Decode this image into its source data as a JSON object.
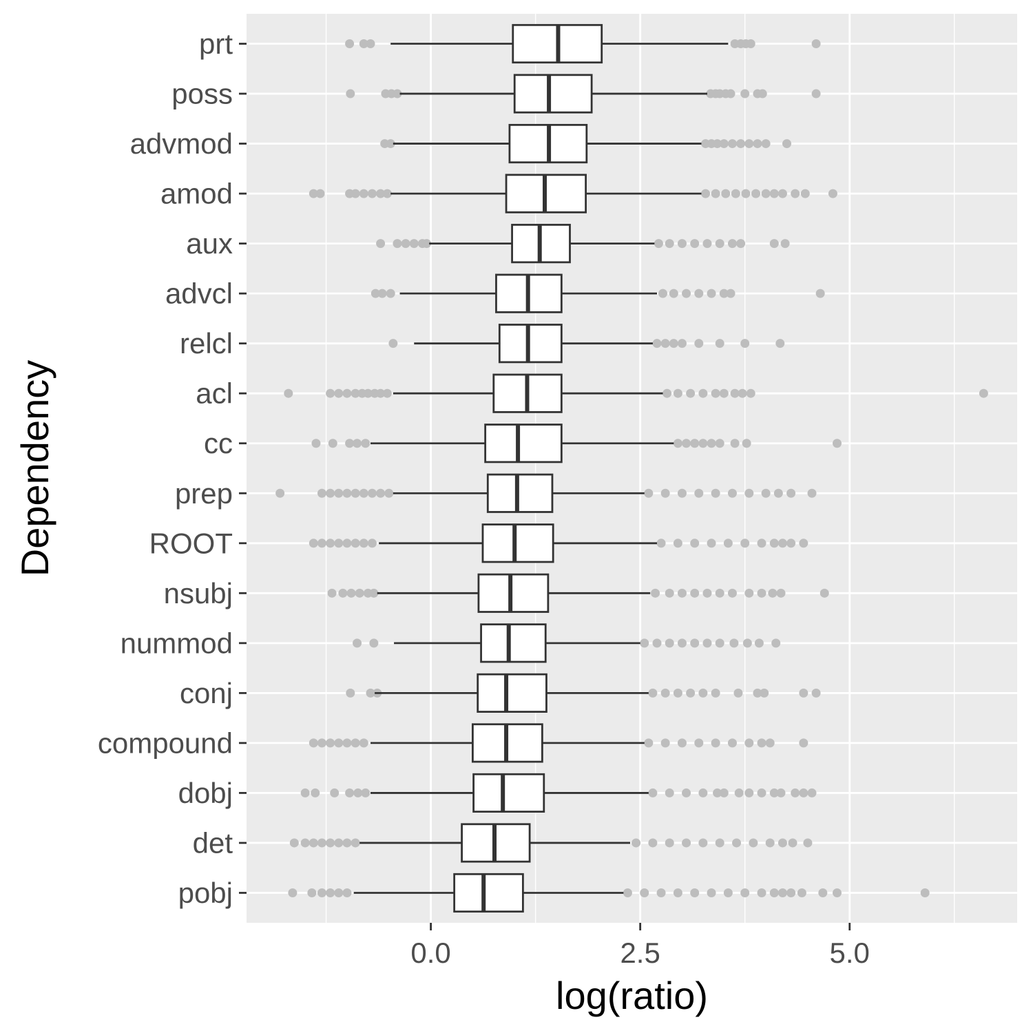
{
  "chart_data": {
    "type": "boxplot",
    "orientation": "horizontal",
    "xlabel": "log(ratio)",
    "ylabel": "Dependency",
    "xlim": [
      -2.2,
      7.0
    ],
    "xticks": [
      0.0,
      2.5,
      5.0
    ],
    "xtick_labels": [
      "0.0",
      "2.5",
      "5.0"
    ],
    "grid": true,
    "legend": "none",
    "colors": {
      "panel": "#ebebeb",
      "grid": "#ffffff",
      "box_fill": "#ffffff",
      "box_line": "#333333",
      "outlier": "#bdbdbd",
      "tick_text": "#4d4d4d"
    },
    "categories": [
      "prt",
      "poss",
      "advmod",
      "amod",
      "aux",
      "advcl",
      "relcl",
      "acl",
      "cc",
      "prep",
      "ROOT",
      "nsubj",
      "nummod",
      "conj",
      "compound",
      "dobj",
      "det",
      "pobj"
    ],
    "boxes": [
      {
        "label": "prt",
        "q1": 0.98,
        "median": 1.52,
        "q3": 2.04,
        "whisker_low": -0.48,
        "whisker_high": 3.55,
        "outliers": [
          -0.97,
          -0.8,
          -0.72,
          3.63,
          3.7,
          3.76,
          3.82,
          4.6
        ]
      },
      {
        "label": "poss",
        "q1": 1.0,
        "median": 1.41,
        "q3": 1.92,
        "whisker_low": -0.37,
        "whisker_high": 3.3,
        "outliers": [
          -0.96,
          -0.54,
          -0.47,
          -0.4,
          3.34,
          3.4,
          3.45,
          3.52,
          3.58,
          3.75,
          3.9,
          3.96,
          4.6
        ]
      },
      {
        "label": "advmod",
        "q1": 0.94,
        "median": 1.41,
        "q3": 1.86,
        "whisker_low": -0.45,
        "whisker_high": 3.23,
        "outliers": [
          -0.55,
          -0.48,
          3.28,
          3.35,
          3.42,
          3.5,
          3.6,
          3.7,
          3.8,
          3.9,
          4.0,
          4.25
        ]
      },
      {
        "label": "amod",
        "q1": 0.9,
        "median": 1.36,
        "q3": 1.85,
        "whisker_low": -0.48,
        "whisker_high": 3.23,
        "outliers": [
          -1.4,
          -1.32,
          -0.97,
          -0.9,
          -0.8,
          -0.7,
          -0.6,
          -0.52,
          3.28,
          3.4,
          3.52,
          3.64,
          3.76,
          3.88,
          4.0,
          4.1,
          4.2,
          4.35,
          4.47,
          4.8
        ]
      },
      {
        "label": "aux",
        "q1": 0.97,
        "median": 1.3,
        "q3": 1.66,
        "whisker_low": -0.02,
        "whisker_high": 2.67,
        "outliers": [
          -0.6,
          -0.4,
          -0.3,
          -0.2,
          -0.1,
          -0.05,
          2.72,
          2.85,
          3.0,
          3.15,
          3.3,
          3.45,
          3.6,
          3.7,
          4.1,
          4.23
        ]
      },
      {
        "label": "advcl",
        "q1": 0.78,
        "median": 1.16,
        "q3": 1.56,
        "whisker_low": -0.37,
        "whisker_high": 2.7,
        "outliers": [
          -0.66,
          -0.58,
          -0.48,
          2.77,
          2.9,
          3.05,
          3.2,
          3.35,
          3.5,
          3.58,
          4.65
        ]
      },
      {
        "label": "relcl",
        "q1": 0.82,
        "median": 1.16,
        "q3": 1.56,
        "whisker_low": -0.2,
        "whisker_high": 2.65,
        "outliers": [
          -0.45,
          2.7,
          2.8,
          2.9,
          3.0,
          3.2,
          3.45,
          3.75,
          4.17
        ]
      },
      {
        "label": "acl",
        "q1": 0.75,
        "median": 1.15,
        "q3": 1.56,
        "whisker_low": -0.45,
        "whisker_high": 2.77,
        "outliers": [
          -1.7,
          -1.2,
          -1.1,
          -1.0,
          -0.9,
          -0.82,
          -0.75,
          -0.67,
          -0.6,
          -0.52,
          2.82,
          2.95,
          3.1,
          3.25,
          3.4,
          3.5,
          3.63,
          3.72,
          3.82,
          6.6
        ]
      },
      {
        "label": "cc",
        "q1": 0.65,
        "median": 1.04,
        "q3": 1.56,
        "whisker_low": -0.72,
        "whisker_high": 2.9,
        "outliers": [
          -1.37,
          -1.17,
          -0.97,
          -0.88,
          -0.78,
          2.95,
          3.05,
          3.15,
          3.25,
          3.35,
          3.45,
          3.63,
          3.77,
          4.85
        ]
      },
      {
        "label": "prep",
        "q1": 0.68,
        "median": 1.03,
        "q3": 1.45,
        "whisker_low": -0.45,
        "whisker_high": 2.55,
        "outliers": [
          -1.8,
          -1.3,
          -1.2,
          -1.1,
          -1.0,
          -0.9,
          -0.8,
          -0.7,
          -0.6,
          -0.5,
          2.6,
          2.8,
          3.0,
          3.2,
          3.4,
          3.6,
          3.8,
          4.0,
          4.15,
          4.3,
          4.55
        ]
      },
      {
        "label": "ROOT",
        "q1": 0.62,
        "median": 1.0,
        "q3": 1.46,
        "whisker_low": -0.62,
        "whisker_high": 2.7,
        "outliers": [
          -1.4,
          -1.3,
          -1.2,
          -1.1,
          -1.0,
          -0.9,
          -0.8,
          -0.7,
          2.75,
          2.95,
          3.15,
          3.35,
          3.55,
          3.75,
          3.95,
          4.1,
          4.2,
          4.3,
          4.45
        ]
      },
      {
        "label": "nsubj",
        "q1": 0.57,
        "median": 0.95,
        "q3": 1.4,
        "whisker_low": -0.64,
        "whisker_high": 2.62,
        "outliers": [
          -1.18,
          -1.05,
          -0.95,
          -0.85,
          -0.75,
          -0.68,
          2.68,
          2.85,
          3.0,
          3.15,
          3.3,
          3.45,
          3.6,
          3.8,
          3.95,
          4.08,
          4.18,
          4.7
        ]
      },
      {
        "label": "nummod",
        "q1": 0.6,
        "median": 0.93,
        "q3": 1.37,
        "whisker_low": -0.44,
        "whisker_high": 2.5,
        "outliers": [
          -0.88,
          -0.68,
          2.55,
          2.7,
          2.85,
          3.0,
          3.15,
          3.3,
          3.45,
          3.62,
          3.78,
          3.92,
          4.12
        ]
      },
      {
        "label": "conj",
        "q1": 0.56,
        "median": 0.9,
        "q3": 1.38,
        "whisker_low": -0.67,
        "whisker_high": 2.6,
        "outliers": [
          -0.96,
          -0.72,
          -0.64,
          2.65,
          2.8,
          2.95,
          3.1,
          3.25,
          3.4,
          3.67,
          3.9,
          3.98,
          4.45,
          4.6
        ]
      },
      {
        "label": "compound",
        "q1": 0.5,
        "median": 0.9,
        "q3": 1.33,
        "whisker_low": -0.72,
        "whisker_high": 2.55,
        "outliers": [
          -1.4,
          -1.3,
          -1.2,
          -1.1,
          -1.0,
          -0.9,
          -0.8,
          2.6,
          2.8,
          3.0,
          3.2,
          3.4,
          3.6,
          3.8,
          3.95,
          4.05,
          4.45
        ]
      },
      {
        "label": "dobj",
        "q1": 0.51,
        "median": 0.86,
        "q3": 1.35,
        "whisker_low": -0.72,
        "whisker_high": 2.6,
        "outliers": [
          -1.5,
          -1.38,
          -1.15,
          -0.97,
          -0.87,
          -0.78,
          2.65,
          2.85,
          3.05,
          3.25,
          3.42,
          3.5,
          3.68,
          3.8,
          3.95,
          4.1,
          4.18,
          4.35,
          4.45,
          4.55
        ]
      },
      {
        "label": "det",
        "q1": 0.37,
        "median": 0.76,
        "q3": 1.18,
        "whisker_low": -0.85,
        "whisker_high": 2.38,
        "outliers": [
          -1.63,
          -1.5,
          -1.4,
          -1.3,
          -1.2,
          -1.1,
          -1.0,
          -0.9,
          2.45,
          2.65,
          2.85,
          3.05,
          3.25,
          3.45,
          3.65,
          3.85,
          4.05,
          4.2,
          4.32,
          4.5
        ]
      },
      {
        "label": "pobj",
        "q1": 0.28,
        "median": 0.63,
        "q3": 1.1,
        "whisker_low": -0.92,
        "whisker_high": 2.3,
        "outliers": [
          -1.65,
          -1.42,
          -1.3,
          -1.2,
          -1.1,
          -1.0,
          2.35,
          2.55,
          2.75,
          2.95,
          3.15,
          3.35,
          3.55,
          3.75,
          3.95,
          4.1,
          4.2,
          4.3,
          4.43,
          4.68,
          4.85,
          5.9
        ]
      }
    ]
  }
}
